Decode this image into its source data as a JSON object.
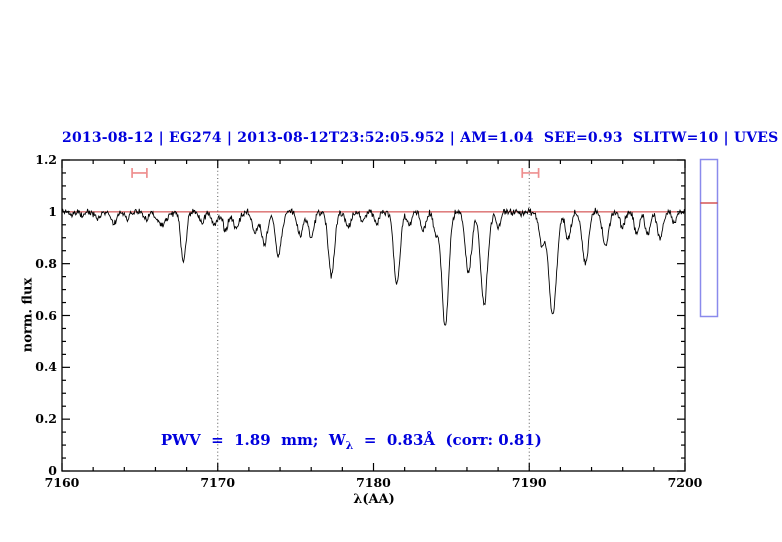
{
  "header": {
    "title": "2013-08-12 | EG274 | 2013-08-12T23:52:05.952 | AM=1.04  SEE=0.93  SLITW=10 | UVES"
  },
  "annotation": {
    "prefix": "PWV  =  1.89  mm;  W",
    "sub": "λ",
    "suffix": "  =  0.83Å  (corr: 0.81)"
  },
  "colors": {
    "title_text": "#0000dd",
    "annotation_text": "#0000dd",
    "spectrum": "#000000",
    "continuum": "#cc3333",
    "range_marker": "#ee8f8f",
    "guide": "#555555",
    "frame": "#000000",
    "side_panel_border": "#8a8aec"
  },
  "side_panel": {
    "border_color": "#8a8aec",
    "marker_line_color": "#cc3333"
  },
  "chart_data": {
    "type": "line",
    "title": "2013-08-12 | EG274 | 2013-08-12T23:52:05.952 | AM=1.04  SEE=0.93  SLITW=10 | UVES",
    "xlabel": "λ(AA)",
    "ylabel": "norm. flux",
    "xlim": [
      7160,
      7200
    ],
    "ylim": [
      0,
      1.2
    ],
    "x_major_ticks": [
      7160,
      7170,
      7180,
      7190,
      7200
    ],
    "x_minor_step": 2,
    "y_major_ticks": [
      0,
      0.2,
      0.4,
      0.6,
      0.8,
      1,
      1.2
    ],
    "y_tick_labels": [
      "0",
      "0.2",
      "0.4",
      "0.6",
      "0.8",
      "1",
      "1.2"
    ],
    "y_minor_step": 0.05,
    "grid": false,
    "continuum_level": 1.0,
    "dotted_guides_x": [
      7170,
      7190
    ],
    "range_markers": [
      {
        "x_start": 7164.5,
        "x_end": 7165.45,
        "y": 1.15,
        "cap_half_height": 0.019
      },
      {
        "x_start": 7189.55,
        "x_end": 7190.6,
        "y": 1.15,
        "cap_half_height": 0.019
      }
    ],
    "absorption_lines": [
      [
        7160.6,
        0.015,
        0.12
      ],
      [
        7161.3,
        0.02,
        0.12
      ],
      [
        7162.3,
        0.03,
        0.15
      ],
      [
        7163.3,
        0.045,
        0.18
      ],
      [
        7164.2,
        0.025,
        0.12
      ],
      [
        7165.4,
        0.03,
        0.15
      ],
      [
        7166.4,
        0.05,
        0.3
      ],
      [
        7167.8,
        0.19,
        0.17
      ],
      [
        7169.0,
        0.04,
        0.15
      ],
      [
        7169.8,
        0.05,
        0.18
      ],
      [
        7170.5,
        0.07,
        0.18
      ],
      [
        7171.2,
        0.065,
        0.18
      ],
      [
        7172.4,
        0.08,
        0.18
      ],
      [
        7173.0,
        0.13,
        0.18
      ],
      [
        7173.9,
        0.17,
        0.2
      ],
      [
        7175.3,
        0.09,
        0.18
      ],
      [
        7176.0,
        0.1,
        0.18
      ],
      [
        7177.3,
        0.24,
        0.2
      ],
      [
        7178.4,
        0.06,
        0.18
      ],
      [
        7179.3,
        0.035,
        0.15
      ],
      [
        7180.2,
        0.045,
        0.15
      ],
      [
        7181.5,
        0.28,
        0.2
      ],
      [
        7182.3,
        0.05,
        0.15
      ],
      [
        7183.2,
        0.07,
        0.18
      ],
      [
        7184.0,
        0.08,
        0.15
      ],
      [
        7184.6,
        0.44,
        0.22
      ],
      [
        7186.1,
        0.24,
        0.2
      ],
      [
        7187.1,
        0.36,
        0.22
      ],
      [
        7188.0,
        0.06,
        0.15
      ],
      [
        7190.8,
        0.12,
        0.18
      ],
      [
        7191.5,
        0.4,
        0.25
      ],
      [
        7192.5,
        0.1,
        0.18
      ],
      [
        7193.6,
        0.2,
        0.2
      ],
      [
        7194.9,
        0.13,
        0.2
      ],
      [
        7196.0,
        0.06,
        0.16
      ],
      [
        7196.9,
        0.08,
        0.16
      ],
      [
        7197.6,
        0.09,
        0.16
      ],
      [
        7198.4,
        0.1,
        0.18
      ],
      [
        7199.3,
        0.04,
        0.14
      ]
    ],
    "noise_sigma": 0.006,
    "sample_step": 0.04,
    "legend": null
  }
}
